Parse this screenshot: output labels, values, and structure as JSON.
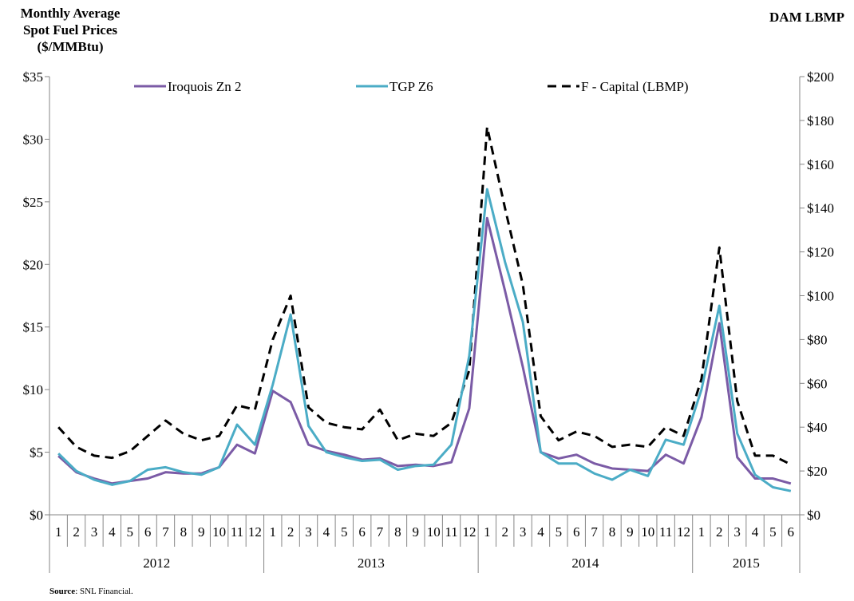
{
  "left_title_lines": [
    "Monthly Average",
    "Spot Fuel Prices",
    "($/MMBtu)"
  ],
  "right_title": "DAM LBMP",
  "source": {
    "label": "Source",
    "text": ": SNL Financial."
  },
  "chart_data": {
    "type": "line",
    "legend_position": "top",
    "grid": false,
    "x_months": [
      "1",
      "2",
      "3",
      "4",
      "5",
      "6",
      "7",
      "8",
      "9",
      "10",
      "11",
      "12",
      "1",
      "2",
      "3",
      "4",
      "5",
      "6",
      "7",
      "8",
      "9",
      "10",
      "11",
      "12",
      "1",
      "2",
      "3",
      "4",
      "5",
      "6",
      "7",
      "8",
      "9",
      "10",
      "11",
      "12",
      "1",
      "2",
      "3",
      "4",
      "5",
      "6"
    ],
    "x_years": [
      {
        "label": "2012",
        "count": 12
      },
      {
        "label": "2013",
        "count": 12
      },
      {
        "label": "2014",
        "count": 12
      },
      {
        "label": "2015",
        "count": 6
      }
    ],
    "y_left": {
      "ylim": [
        0,
        35
      ],
      "ticks": [
        0,
        5,
        10,
        15,
        20,
        25,
        30,
        35
      ],
      "tick_labels": [
        "$0",
        "$5",
        "$10",
        "$15",
        "$20",
        "$25",
        "$30",
        "$35"
      ]
    },
    "y_right": {
      "ylim": [
        0,
        200
      ],
      "ticks": [
        0,
        20,
        40,
        60,
        80,
        100,
        120,
        140,
        160,
        180,
        200
      ],
      "tick_labels": [
        "$0",
        "$20",
        "$40",
        "$60",
        "$80",
        "$100",
        "$120",
        "$140",
        "$160",
        "$180",
        "$200"
      ]
    },
    "series": [
      {
        "name": "Iroquois Zn 2",
        "axis": "left",
        "color": "#7B5BA6",
        "style": "solid",
        "values": [
          4.7,
          3.4,
          2.9,
          2.5,
          2.7,
          2.9,
          3.4,
          3.3,
          3.3,
          3.8,
          5.6,
          4.9,
          9.9,
          9.0,
          5.6,
          5.1,
          4.8,
          4.4,
          4.5,
          3.9,
          4.0,
          3.9,
          4.2,
          8.5,
          23.7,
          17.9,
          11.8,
          5.0,
          4.5,
          4.8,
          4.1,
          3.7,
          3.6,
          3.5,
          4.8,
          4.1,
          7.8,
          15.3,
          4.6,
          2.9,
          2.9,
          2.5
        ]
      },
      {
        "name": "TGP Z6",
        "axis": "left",
        "color": "#4BACC6",
        "style": "solid",
        "values": [
          4.9,
          3.5,
          2.8,
          2.4,
          2.7,
          3.6,
          3.8,
          3.4,
          3.2,
          3.8,
          7.2,
          5.6,
          10.4,
          16.0,
          7.1,
          5.0,
          4.6,
          4.3,
          4.4,
          3.6,
          3.9,
          4.0,
          5.6,
          12.7,
          26.0,
          20.2,
          15.4,
          5.0,
          4.1,
          4.1,
          3.3,
          2.8,
          3.6,
          3.1,
          6.0,
          5.6,
          10.0,
          16.7,
          6.5,
          3.2,
          2.2,
          1.9
        ]
      },
      {
        "name": "F - Capital (LBMP)",
        "axis": "right",
        "color": "#000000",
        "style": "dashed",
        "values": [
          40,
          31,
          27,
          26,
          29,
          36,
          43,
          37,
          34,
          36,
          50,
          48,
          80,
          100,
          49,
          42,
          40,
          39,
          48,
          34,
          37,
          36,
          42,
          66,
          177,
          140,
          105,
          45,
          34,
          38,
          36,
          31,
          32,
          31,
          40,
          36,
          62,
          122,
          52,
          27,
          27,
          23
        ]
      }
    ]
  }
}
